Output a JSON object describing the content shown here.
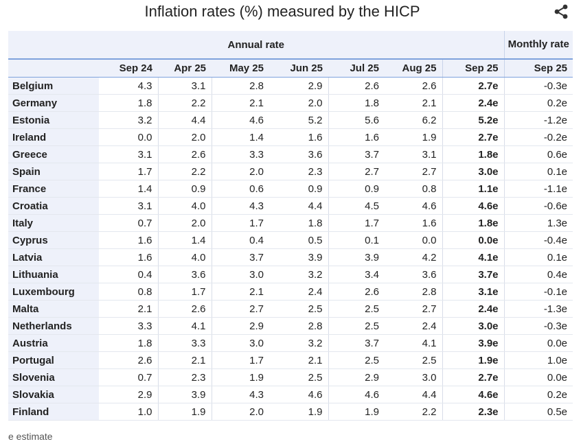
{
  "title": "Inflation rates (%) measured by the HICP",
  "share_icon": "share-icon",
  "header": {
    "annual_rate": "Annual rate",
    "monthly_rate": "Monthly rate",
    "columns": [
      "Sep 24",
      "Apr 25",
      "May 25",
      "Jun 25",
      "Jul 25",
      "Aug 25",
      "Sep 25",
      "Sep 25"
    ]
  },
  "rows": [
    {
      "country": "Belgium",
      "values": [
        "4.3",
        "3.1",
        "2.8",
        "2.9",
        "2.6",
        "2.6",
        "2.7e",
        "-0.3e"
      ]
    },
    {
      "country": "Germany",
      "values": [
        "1.8",
        "2.2",
        "2.1",
        "2.0",
        "1.8",
        "2.1",
        "2.4e",
        "0.2e"
      ]
    },
    {
      "country": "Estonia",
      "values": [
        "3.2",
        "4.4",
        "4.6",
        "5.2",
        "5.6",
        "6.2",
        "5.2e",
        "-1.2e"
      ]
    },
    {
      "country": "Ireland",
      "values": [
        "0.0",
        "2.0",
        "1.4",
        "1.6",
        "1.6",
        "1.9",
        "2.7e",
        "-0.2e"
      ]
    },
    {
      "country": "Greece",
      "values": [
        "3.1",
        "2.6",
        "3.3",
        "3.6",
        "3.7",
        "3.1",
        "1.8e",
        "0.6e"
      ]
    },
    {
      "country": "Spain",
      "values": [
        "1.7",
        "2.2",
        "2.0",
        "2.3",
        "2.7",
        "2.7",
        "3.0e",
        "0.1e"
      ]
    },
    {
      "country": "France",
      "values": [
        "1.4",
        "0.9",
        "0.6",
        "0.9",
        "0.9",
        "0.8",
        "1.1e",
        "-1.1e"
      ]
    },
    {
      "country": "Croatia",
      "values": [
        "3.1",
        "4.0",
        "4.3",
        "4.4",
        "4.5",
        "4.6",
        "4.6e",
        "-0.6e"
      ]
    },
    {
      "country": "Italy",
      "values": [
        "0.7",
        "2.0",
        "1.7",
        "1.8",
        "1.7",
        "1.6",
        "1.8e",
        "1.3e"
      ]
    },
    {
      "country": "Cyprus",
      "values": [
        "1.6",
        "1.4",
        "0.4",
        "0.5",
        "0.1",
        "0.0",
        "0.0e",
        "-0.4e"
      ]
    },
    {
      "country": "Latvia",
      "values": [
        "1.6",
        "4.0",
        "3.7",
        "3.9",
        "3.9",
        "4.2",
        "4.1e",
        "0.1e"
      ]
    },
    {
      "country": "Lithuania",
      "values": [
        "0.4",
        "3.6",
        "3.0",
        "3.2",
        "3.4",
        "3.6",
        "3.7e",
        "0.4e"
      ]
    },
    {
      "country": "Luxembourg",
      "values": [
        "0.8",
        "1.7",
        "2.1",
        "2.4",
        "2.6",
        "2.8",
        "3.1e",
        "-0.1e"
      ]
    },
    {
      "country": "Malta",
      "values": [
        "2.1",
        "2.6",
        "2.7",
        "2.5",
        "2.5",
        "2.7",
        "2.4e",
        "-1.3e"
      ]
    },
    {
      "country": "Netherlands",
      "values": [
        "3.3",
        "4.1",
        "2.9",
        "2.8",
        "2.5",
        "2.4",
        "3.0e",
        "-0.3e"
      ]
    },
    {
      "country": "Austria",
      "values": [
        "1.8",
        "3.3",
        "3.0",
        "3.2",
        "3.7",
        "4.1",
        "3.9e",
        "0.0e"
      ]
    },
    {
      "country": "Portugal",
      "values": [
        "2.6",
        "2.1",
        "1.7",
        "2.1",
        "2.5",
        "2.5",
        "1.9e",
        "1.0e"
      ]
    },
    {
      "country": "Slovenia",
      "values": [
        "0.7",
        "2.3",
        "1.9",
        "2.5",
        "2.9",
        "3.0",
        "2.7e",
        "0.0e"
      ]
    },
    {
      "country": "Slovakia",
      "values": [
        "2.9",
        "3.9",
        "4.3",
        "4.6",
        "4.6",
        "4.4",
        "4.6e",
        "0.2e"
      ]
    },
    {
      "country": "Finland",
      "values": [
        "1.0",
        "1.9",
        "2.0",
        "1.9",
        "1.9",
        "2.2",
        "2.3e",
        "0.5e"
      ]
    }
  ],
  "footnote": "e estimate"
}
